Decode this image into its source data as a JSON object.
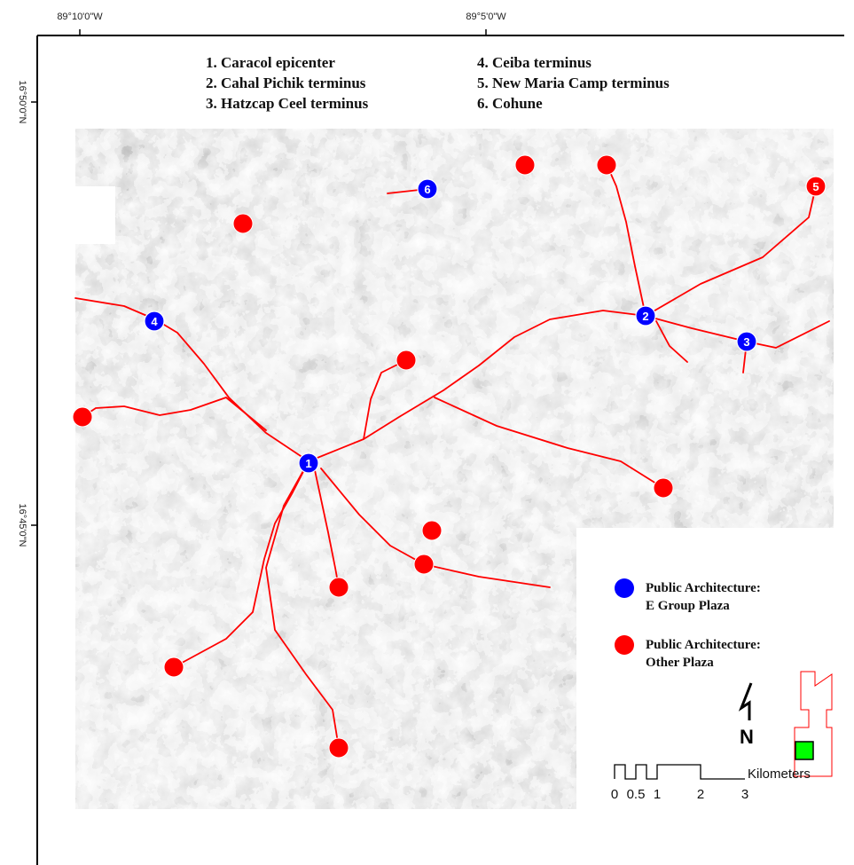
{
  "coordinates": {
    "top_labels": [
      "89°10'0\"W",
      "89°5'0\"W"
    ],
    "left_labels": [
      "16°50'0\"N",
      "16°45'0\"N"
    ]
  },
  "site_key": {
    "col1": [
      "1. Caracol epicenter",
      "2. Cahal Pichik terminus",
      "3. Hatzcap Ceel terminus"
    ],
    "col2": [
      "4. Ceiba terminus",
      "5. New Maria Camp terminus",
      "6. Cohune"
    ]
  },
  "sites": [
    {
      "num": "1",
      "type": "e-group"
    },
    {
      "num": "2",
      "type": "e-group"
    },
    {
      "num": "3",
      "type": "e-group"
    },
    {
      "num": "4",
      "type": "e-group"
    },
    {
      "num": "5",
      "type": "other"
    },
    {
      "num": "6",
      "type": "e-group"
    }
  ],
  "legend": {
    "e_group": {
      "line1": "Public Architecture:",
      "line2": "E Group Plaza",
      "color": "#0000ff"
    },
    "other": {
      "line1": "Public Architecture:",
      "line2": "Other Plaza",
      "color": "#ff0000"
    }
  },
  "scale_bar": {
    "unit": "Kilometers",
    "ticks": [
      "0",
      "0.5",
      "1",
      "2",
      "3"
    ]
  },
  "north_arrow": {
    "label": "N"
  },
  "colors": {
    "causeway": "#ff0000",
    "inset_site": "#00ff00"
  }
}
